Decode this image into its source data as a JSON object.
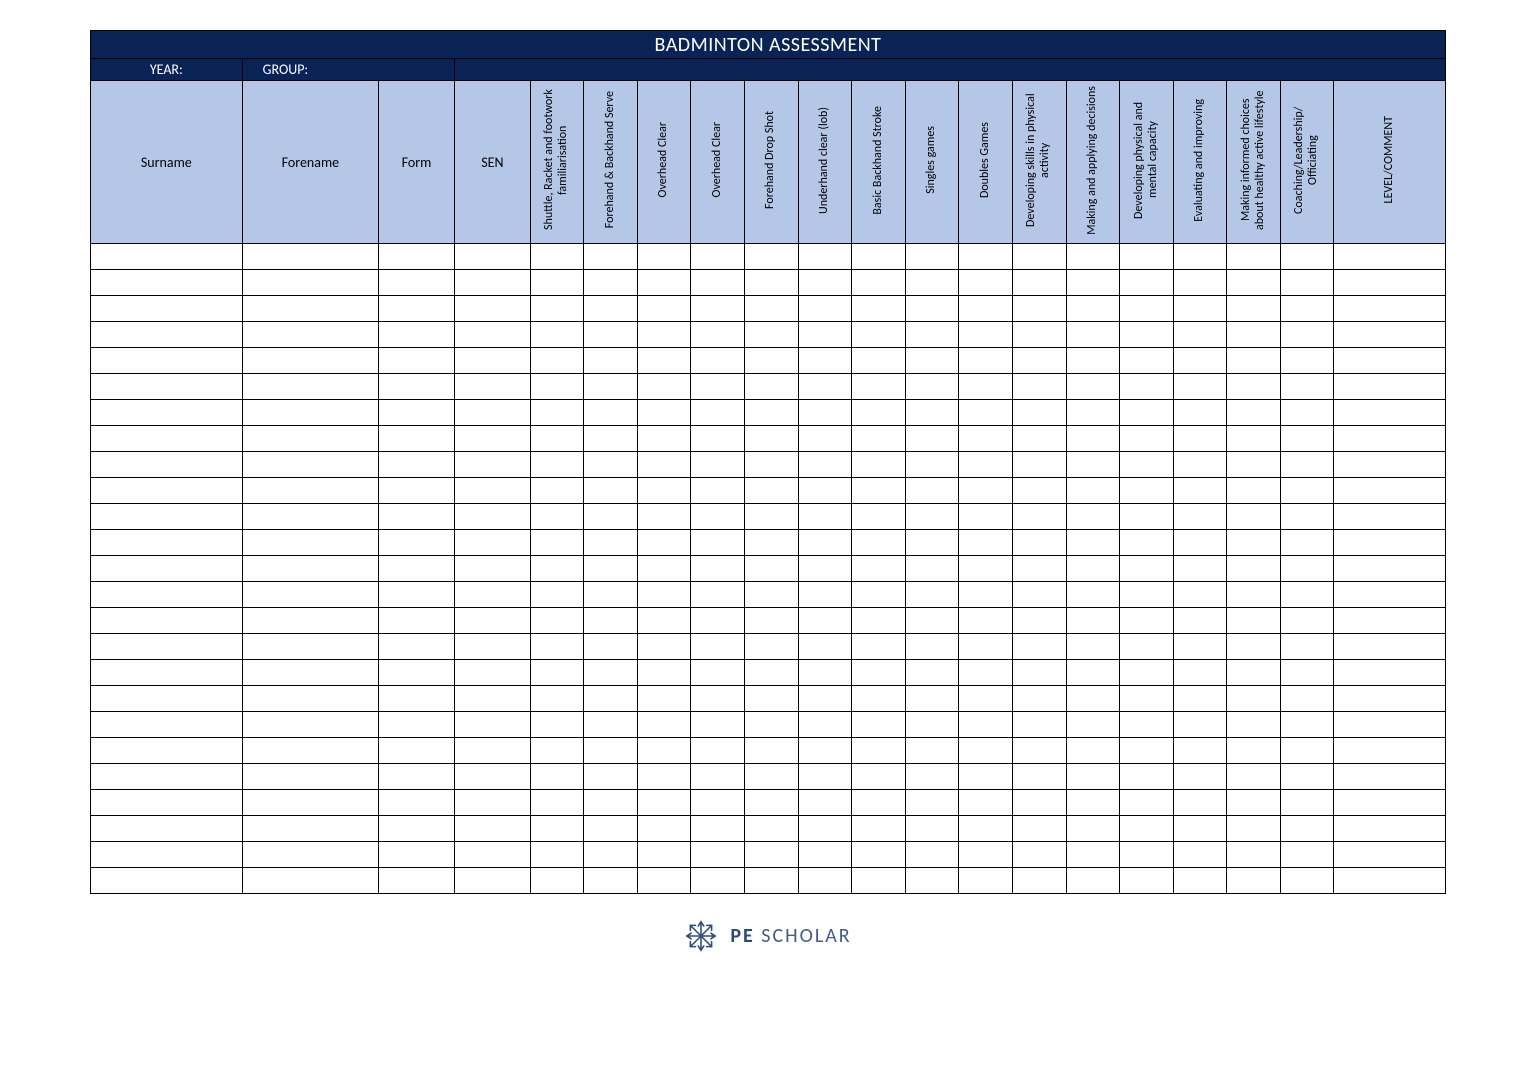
{
  "title": "BADMINTON ASSESSMENT",
  "meta": {
    "year_label": "YEAR:",
    "group_label": "GROUP:"
  },
  "columns": {
    "id_cols": [
      {
        "key": "surname",
        "label": "Surname",
        "class": "surname"
      },
      {
        "key": "forename",
        "label": "Forename",
        "class": "forename"
      },
      {
        "key": "form",
        "label": "Form",
        "class": "form"
      },
      {
        "key": "sen",
        "label": "SEN",
        "class": "sen"
      }
    ],
    "skill_cols": [
      "Shuttle, Racket and footwork familiarisation",
      "Forehand  & Backhand Serve",
      "Overhead Clear",
      "Overhead Clear",
      "Forehand Drop Shot",
      "Underhand clear (lob)",
      "Basic Backhand Stroke",
      "Singles games",
      "Doubles Games",
      "Developing skills in physical activity",
      "Making and applying decisions",
      "Developing physical and mental capacity",
      "Evaluating and improving",
      "Making informed choices about healthy active lifestyle",
      "Coaching/Leadership/ Officiating",
      "LEVEL/COMMENT"
    ]
  },
  "row_count": 25,
  "colors": {
    "title_bg": "#0a2356",
    "title_fg": "#ffffff",
    "header_bg": "#b4c7e7",
    "border": "#000000",
    "page_bg": "#ffffff",
    "logo": "#2f4a7a"
  },
  "footer": {
    "brand_bold": "PE",
    "brand_light": "SCHOLAR"
  }
}
